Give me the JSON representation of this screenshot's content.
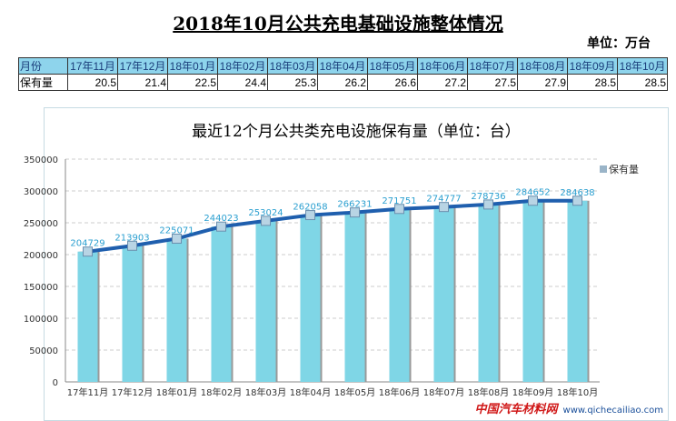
{
  "title": "2018年10月公共充电基础设施整体情况",
  "unit": "单位：万台",
  "table": {
    "header_label": "月份",
    "row_label": "保有量",
    "months": [
      "17年11月",
      "17年12月",
      "18年01月",
      "18年02月",
      "18年03月",
      "18年04月",
      "18年05月",
      "18年06月",
      "18年07月",
      "18年08月",
      "18年09月",
      "18年10月"
    ],
    "values": [
      "20.5",
      "21.4",
      "22.5",
      "24.4",
      "25.3",
      "26.2",
      "26.6",
      "27.2",
      "27.5",
      "27.9",
      "28.5",
      "28.5"
    ]
  },
  "chart_data": {
    "type": "bar",
    "title": "最近12个月公共类充电设施保有量（单位：台）",
    "categories": [
      "17年11月",
      "17年12月",
      "18年01月",
      "18年02月",
      "18年03月",
      "18年04月",
      "18年05月",
      "18年06月",
      "18年07月",
      "18年08月",
      "18年09月",
      "18年10月"
    ],
    "series": [
      {
        "name": "保有量",
        "values": [
          204729,
          213903,
          225071,
          244023,
          253024,
          262058,
          266231,
          271751,
          274777,
          278736,
          284652,
          284638
        ]
      }
    ],
    "overlay_line": true,
    "ylim": [
      0,
      350000
    ],
    "yticks": [
      0,
      50000,
      100000,
      150000,
      200000,
      250000,
      300000,
      350000
    ],
    "grid": true,
    "legend": "top-right",
    "colors": {
      "bar": "#7fd6e6",
      "line": "#1f5fae",
      "label": "#2a9fd0"
    }
  },
  "watermark": {
    "name": "中国汽车材料网",
    "url": "www.qichecailiao.com"
  }
}
